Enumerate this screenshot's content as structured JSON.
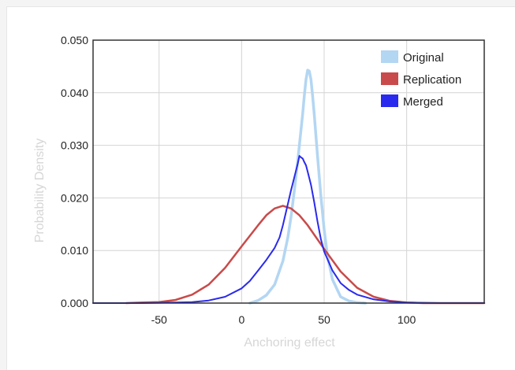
{
  "chart_data": {
    "type": "line",
    "xlabel": "Anchoring effect",
    "ylabel": "Probability Density",
    "xlim": [
      -90,
      147
    ],
    "ylim": [
      0,
      0.05
    ],
    "x_ticks": [
      -50,
      0,
      50,
      100
    ],
    "x_tick_labels": [
      "-50",
      "0",
      "50",
      "100"
    ],
    "y_ticks": [
      0,
      0.01,
      0.02,
      0.03,
      0.04,
      0.05
    ],
    "y_tick_labels": [
      "0.000",
      "0.010",
      "0.020",
      "0.030",
      "0.040",
      "0.050"
    ],
    "grid": true,
    "legend_position": "top-right",
    "series": [
      {
        "name": "Original",
        "color": "#b3d6f2",
        "x": [
          5,
          10,
          15,
          20,
          25,
          28,
          30,
          32,
          34,
          36,
          37,
          38,
          39,
          40,
          41,
          42,
          43,
          44,
          46,
          48,
          50,
          52,
          55,
          60,
          65,
          70,
          75
        ],
        "y": [
          0.0,
          0.0005,
          0.0015,
          0.0035,
          0.008,
          0.0125,
          0.0165,
          0.0215,
          0.027,
          0.033,
          0.036,
          0.0395,
          0.0425,
          0.0443,
          0.0441,
          0.0425,
          0.0395,
          0.036,
          0.028,
          0.0205,
          0.014,
          0.009,
          0.0045,
          0.0012,
          0.0004,
          0.0001,
          0.0
        ]
      },
      {
        "name": "Replication",
        "color": "#c94a4a",
        "x": [
          -70,
          -60,
          -50,
          -40,
          -30,
          -20,
          -10,
          0,
          10,
          15,
          20,
          25,
          30,
          35,
          40,
          50,
          60,
          70,
          80,
          90,
          100,
          110,
          120,
          130,
          140,
          147
        ],
        "y": [
          0.0,
          0.0001,
          0.0002,
          0.0006,
          0.0016,
          0.0035,
          0.0067,
          0.0108,
          0.0148,
          0.0167,
          0.018,
          0.0185,
          0.018,
          0.0167,
          0.0148,
          0.0103,
          0.006,
          0.0029,
          0.0012,
          0.0004,
          0.0001,
          0.0,
          0.0,
          0.0,
          0.0,
          0.0
        ]
      },
      {
        "name": "Merged",
        "color": "#2a2aee",
        "x": [
          -90,
          -60,
          -40,
          -30,
          -20,
          -10,
          0,
          5,
          10,
          15,
          20,
          23,
          25,
          27,
          30,
          32,
          34,
          35,
          36,
          37,
          38,
          39,
          40,
          42,
          44,
          46,
          48,
          50,
          55,
          60,
          65,
          70,
          80,
          90,
          100,
          120,
          147
        ],
        "y": [
          0.0,
          0.0,
          0.0001,
          0.0002,
          0.0005,
          0.0012,
          0.0028,
          0.0042,
          0.0062,
          0.0082,
          0.0105,
          0.0125,
          0.0148,
          0.0175,
          0.0215,
          0.024,
          0.0265,
          0.028,
          0.0277,
          0.0275,
          0.0268,
          0.0262,
          0.025,
          0.0225,
          0.0192,
          0.0155,
          0.0122,
          0.0098,
          0.0062,
          0.0038,
          0.0025,
          0.0016,
          0.0007,
          0.0003,
          0.0001,
          0.0,
          0.0
        ]
      }
    ]
  }
}
